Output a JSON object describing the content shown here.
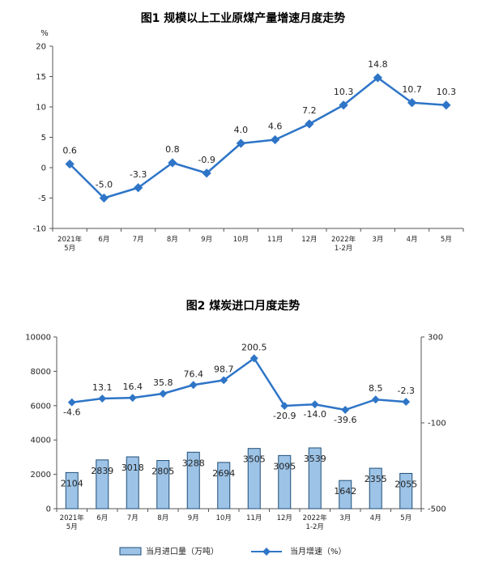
{
  "chart_data": [
    {
      "type": "line",
      "title": "图1  规模以上工业原煤产量增速月度走势",
      "ylabel": "%",
      "ylim": [
        -10,
        20
      ],
      "yticks": [
        "20",
        "15",
        "10",
        "5",
        "0",
        "-5",
        "-10"
      ],
      "categories": [
        "2021年\n5月",
        "6月",
        "7月",
        "8月",
        "9月",
        "10月",
        "11月",
        "12月",
        "2022年\n1-2月",
        "3月",
        "4月",
        "5月"
      ],
      "series": [
        {
          "values": [
            0.6,
            -5.0,
            -3.3,
            0.8,
            -0.9,
            4.0,
            4.6,
            7.2,
            10.3,
            14.8,
            10.7,
            10.3
          ],
          "labels": [
            "0.6",
            "-5.0",
            "-3.3",
            "0.8",
            "-0.9",
            "4.0",
            "4.6",
            "7.2",
            "10.3",
            "14.8",
            "10.7",
            "10.3"
          ]
        }
      ],
      "colors": {
        "line": "#2E75C7"
      },
      "grid": false
    },
    {
      "type": "bar",
      "title": "图2  煤炭进口月度走势",
      "categories": [
        "2021年\n5月",
        "6月",
        "7月",
        "8月",
        "9月",
        "10月",
        "11月",
        "12月",
        "2022年\n1-2月",
        "3月",
        "4月",
        "5月"
      ],
      "ylim_left": [
        0,
        10000
      ],
      "yticks_left": [
        "10000",
        "8000",
        "6000",
        "4000",
        "2000",
        "0"
      ],
      "ylim_right": [
        -500,
        300
      ],
      "yticks_right": [
        "300",
        "-100",
        "-500"
      ],
      "series": [
        {
          "name": "当月进口量（万吨）",
          "type": "bar",
          "axis": "left",
          "values": [
            2104,
            2839,
            3018,
            2805,
            3288,
            2694,
            3505,
            3095,
            3539,
            1642,
            2355,
            2055
          ],
          "labels": [
            "2104",
            "2839",
            "3018",
            "2805",
            "3288",
            "2694",
            "3505",
            "3095",
            "3539",
            "1642",
            "2355",
            "2055"
          ]
        },
        {
          "name": "当月增速（%）",
          "type": "line",
          "axis": "right",
          "values": [
            -4.6,
            13.1,
            16.4,
            35.8,
            76.4,
            98.7,
            200.5,
            -20.9,
            -14.0,
            -39.6,
            8.5,
            -2.3
          ],
          "labels": [
            "-4.6",
            "13.1",
            "16.4",
            "35.8",
            "76.4",
            "98.7",
            "200.5",
            "-20.9",
            "-14.0",
            "-39.6",
            "8.5",
            "-2.3"
          ]
        }
      ],
      "legend": "bottom",
      "colors": {
        "bar_fill": "#9DC3E6",
        "bar_stroke": "#1F4E79",
        "line": "#2E75C7"
      },
      "grid": false
    }
  ]
}
